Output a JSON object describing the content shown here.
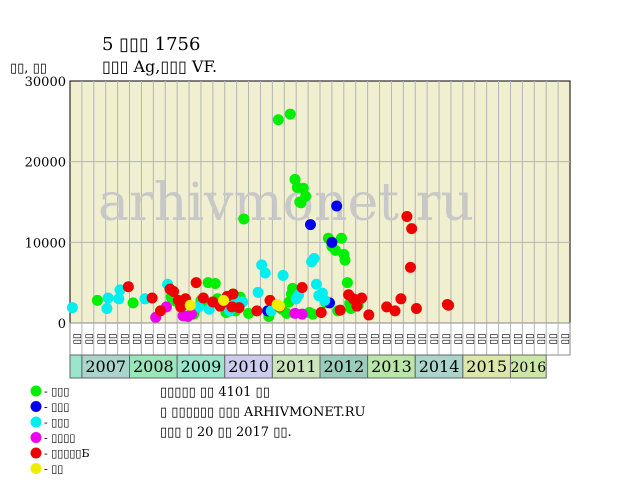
{
  "chart_data": {
    "type": "scatter",
    "title": "5 ▯▯▯ 1756",
    "subtitle": "▯▯▯ Ag,▯▯▯ VF.",
    "ylabel": "▯▯, ▯▯",
    "watermark": "arhivmonet.ru",
    "ylim": [
      0,
      30000
    ],
    "y_ticks": [
      0,
      10000,
      20000,
      30000
    ],
    "y_tick_labels": [
      "0",
      "10000",
      "20000",
      "30000"
    ],
    "grid": true,
    "background": "#f0f0d0",
    "quarter_labels": [
      "▯▯",
      "▯▯",
      "▯▯",
      "▯▯",
      "▯▯",
      "▯▯",
      "▯▯",
      "▯▯",
      "▯▯",
      "▯▯",
      "▯▯",
      "▯▯",
      "▯▯",
      "▯▯",
      "▯▯",
      "▯▯",
      "▯▯",
      "▯▯",
      "▯▯",
      "▯▯",
      "▯▯",
      "▯▯",
      "▯▯",
      "▯▯",
      "▯▯",
      "▯▯",
      "▯▯",
      "▯▯",
      "▯▯",
      "▯▯",
      "▯▯",
      "▯▯",
      "▯▯",
      "▯▯",
      "▯▯",
      "▯▯",
      "▯▯",
      "▯▯",
      "▯▯",
      "▯▯",
      "▯▯",
      "▯▯"
    ],
    "years": [
      {
        "label": "",
        "quarters": 1,
        "color": "#99e6cc"
      },
      {
        "label": "2007",
        "quarters": 4,
        "color": "#aad4cc"
      },
      {
        "label": "2008",
        "quarters": 4,
        "color": "#99e6bb"
      },
      {
        "label": "2009",
        "quarters": 4,
        "color": "#99e6cc"
      },
      {
        "label": "2010",
        "quarters": 4,
        "color": "#ccccee"
      },
      {
        "label": "2011",
        "quarters": 4,
        "color": "#cce6bb"
      },
      {
        "label": "2012",
        "quarters": 4,
        "color": "#99ccbb"
      },
      {
        "label": "2013",
        "quarters": 4,
        "color": "#bbe6aa"
      },
      {
        "label": "2014",
        "quarters": 4,
        "color": "#aad4cc"
      },
      {
        "label": "2015",
        "quarters": 4,
        "color": "#dde6aa"
      },
      {
        "label": "2016",
        "quarters": 3,
        "color": "#cce6aa"
      }
    ],
    "series": [
      {
        "name": "▯ - ▯▯▯",
        "color": "#00ee00",
        "points": [
          [
            2.3,
            2800
          ],
          [
            5.3,
            2500
          ],
          [
            8.5,
            3200
          ],
          [
            8.9,
            2700
          ],
          [
            9.6,
            2200
          ],
          [
            10.4,
            1100
          ],
          [
            10.7,
            1900
          ],
          [
            11,
            2800
          ],
          [
            11.3,
            2300
          ],
          [
            11.6,
            5000
          ],
          [
            12.2,
            4900
          ],
          [
            12.4,
            3000
          ],
          [
            13.1,
            1300
          ],
          [
            13.9,
            1500
          ],
          [
            14.3,
            3200
          ],
          [
            14.6,
            12900
          ],
          [
            15,
            1200
          ],
          [
            16.7,
            800
          ],
          [
            17.3,
            2300
          ],
          [
            17.5,
            25200
          ],
          [
            17.8,
            1700
          ],
          [
            18.2,
            1200
          ],
          [
            18.4,
            2600
          ],
          [
            18.6,
            3600
          ],
          [
            18.7,
            4300
          ],
          [
            18.9,
            17800
          ],
          [
            19.1,
            16800
          ],
          [
            19.3,
            15000
          ],
          [
            19.4,
            14900
          ],
          [
            19.6,
            16700
          ],
          [
            19.8,
            15700
          ],
          [
            20.1,
            1300
          ],
          [
            20.4,
            1100
          ],
          [
            21.5,
            2500
          ],
          [
            21.7,
            10500
          ],
          [
            22,
            9500
          ],
          [
            22.3,
            9000
          ],
          [
            22.5,
            1500
          ],
          [
            22.8,
            10500
          ],
          [
            23,
            8500
          ],
          [
            23.1,
            7800
          ],
          [
            23.3,
            5000
          ],
          [
            23.5,
            2400
          ],
          [
            23.6,
            1800
          ],
          [
            18.5,
            25900
          ],
          [
            24.2,
            2200
          ]
        ]
      },
      {
        "name": "▯ - ▯▯▯",
        "color": "#0000ee",
        "points": [
          [
            16.6,
            1500
          ],
          [
            20.2,
            12200
          ],
          [
            21.8,
            2500
          ],
          [
            22,
            10000
          ],
          [
            22.4,
            14500
          ]
        ]
      },
      {
        "name": "▯ - ▯▯▯",
        "color": "#00eeee",
        "points": [
          [
            0.2,
            1900
          ],
          [
            3.1,
            1800
          ],
          [
            3.2,
            3100
          ],
          [
            4.1,
            3000
          ],
          [
            4.2,
            4100
          ],
          [
            6.3,
            3000
          ],
          [
            8.2,
            4800
          ],
          [
            10.8,
            2000
          ],
          [
            11.7,
            1700
          ],
          [
            13.4,
            1500
          ],
          [
            13.8,
            3100
          ],
          [
            14.5,
            2600
          ],
          [
            15.8,
            3800
          ],
          [
            16.1,
            7200
          ],
          [
            16.4,
            6200
          ],
          [
            16.9,
            1500
          ],
          [
            17.9,
            5900
          ],
          [
            19,
            3000
          ],
          [
            19.2,
            3500
          ],
          [
            20.3,
            7600
          ],
          [
            20.5,
            8000
          ],
          [
            20.7,
            4800
          ],
          [
            20.9,
            3400
          ],
          [
            21.2,
            3700
          ],
          [
            21.4,
            2800
          ]
        ]
      },
      {
        "name": "▯ - ▯▯▯▯",
        "color": "#ee00ee",
        "points": [
          [
            7.2,
            700
          ],
          [
            8.1,
            2000
          ],
          [
            9.5,
            900
          ],
          [
            9.9,
            800
          ],
          [
            10.2,
            1100
          ],
          [
            18.9,
            1200
          ],
          [
            19.5,
            1100
          ]
        ]
      },
      {
        "name": "▯ - ▯▯▯▯▯Б",
        "color": "#ee0000",
        "points": [
          [
            4.9,
            4500
          ],
          [
            6.9,
            3100
          ],
          [
            7.6,
            1500
          ],
          [
            8.4,
            4200
          ],
          [
            8.7,
            3900
          ],
          [
            9.1,
            2800
          ],
          [
            9.3,
            2000
          ],
          [
            9.7,
            3000
          ],
          [
            10.6,
            5000
          ],
          [
            11.2,
            3100
          ],
          [
            12,
            2600
          ],
          [
            12.6,
            2100
          ],
          [
            12.8,
            2500
          ],
          [
            13.6,
            2000
          ],
          [
            13.2,
            3300
          ],
          [
            13.7,
            3600
          ],
          [
            14.2,
            1900
          ],
          [
            15.7,
            1500
          ],
          [
            16.8,
            2800
          ],
          [
            17.6,
            2000
          ],
          [
            19.5,
            4400
          ],
          [
            21.1,
            1300
          ],
          [
            22.7,
            1600
          ],
          [
            23.4,
            3500
          ],
          [
            23.8,
            3000
          ],
          [
            24.1,
            2100
          ],
          [
            24.5,
            3100
          ],
          [
            25.1,
            1000
          ],
          [
            26.6,
            2000
          ],
          [
            27.3,
            1500
          ],
          [
            27.8,
            3000
          ],
          [
            28.3,
            13200
          ],
          [
            28.6,
            6900
          ],
          [
            28.7,
            11700
          ],
          [
            29.1,
            1800
          ],
          [
            31.7,
            2300
          ],
          [
            31.8,
            2200
          ]
        ]
      },
      {
        "name": "▯ - ▯▯",
        "color": "#eeee00",
        "points": [
          [
            10.1,
            2200
          ],
          [
            12.9,
            2800
          ],
          [
            17.4,
            2300
          ],
          [
            17.6,
            2100
          ]
        ]
      }
    ]
  },
  "info_lines": [
    "▯▯▯▯▯ ▯▯ 4101 ▯▯",
    "▯ ▯▯▯▯▯▯ ▯▯▯ ARHIVMONET.RU",
    "▯▯▯ ▯ 20 ▯▯ 2017 ▯▯."
  ]
}
